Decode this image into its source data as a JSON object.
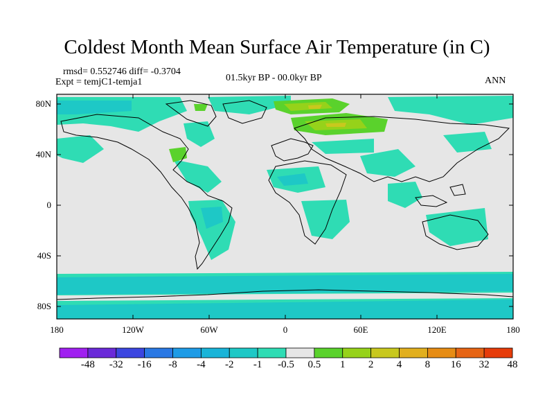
{
  "title": "Coldest Month Mean Surface Air Temperature (in C)",
  "stats_line": "rmsd= 0.552746 diff= -0.3704",
  "experiment_line": "Expt = temjC1-temja1",
  "period": "01.5kyr BP - 00.0kyr BP",
  "season": "ANN",
  "lat_ticks": [
    "80N",
    "40N",
    "0",
    "40S",
    "80S"
  ],
  "lon_ticks": [
    "180",
    "120W",
    "60W",
    "0",
    "60E",
    "120E",
    "180"
  ],
  "colorbar": {
    "labels": [
      "-48",
      "-32",
      "-16",
      "-8",
      "-4",
      "-2",
      "-1",
      "-0.5",
      "0.5",
      "1",
      "2",
      "4",
      "8",
      "16",
      "32",
      "48"
    ],
    "colors": [
      "#a020f0",
      "#6a2ad8",
      "#3c46e0",
      "#2a78e4",
      "#1e9be6",
      "#19b4d8",
      "#1ec8c6",
      "#2fdcb4",
      "#e6e6e6",
      "#5ad22c",
      "#96d21a",
      "#c8c81e",
      "#e1af1e",
      "#e68c14",
      "#e66414",
      "#e63c0a"
    ]
  },
  "colors": {
    "land_background": "#e6e6e6",
    "cool_small": "#2fdcb4",
    "cool_medium": "#1ec8c6",
    "warm_small": "#5ad22c",
    "warm_medium": "#96d21a",
    "warm_high": "#c8c81e",
    "coastline": "#000000"
  }
}
